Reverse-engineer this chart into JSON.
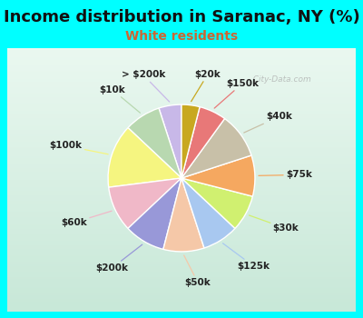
{
  "title": "Income distribution in Saranac, NY (%)",
  "subtitle": "White residents",
  "bg_top_color": "#00FFFF",
  "chart_bg_gradient_top": "#e8f8f0",
  "chart_bg_gradient_bottom": "#d0ece0",
  "labels": [
    "> $200k",
    "$10k",
    "$100k",
    "$60k",
    "$200k",
    "$50k",
    "$125k",
    "$30k",
    "$75k",
    "$40k",
    "$150k",
    "$20k"
  ],
  "values": [
    5,
    8,
    14,
    10,
    9,
    9,
    8,
    8,
    9,
    10,
    6,
    4
  ],
  "colors": [
    "#c8b8e8",
    "#b8d8b0",
    "#f5f580",
    "#f0b8c8",
    "#9898d8",
    "#f5c8a8",
    "#a8c8f0",
    "#d0f070",
    "#f5a860",
    "#c8c0a8",
    "#e87878",
    "#c8a820"
  ],
  "startangle": 90,
  "title_fontsize": 13,
  "subtitle_fontsize": 10,
  "subtitle_color": "#cc6633",
  "label_fontsize": 7.5,
  "label_color": "#222222",
  "watermark": "City-Data.com"
}
